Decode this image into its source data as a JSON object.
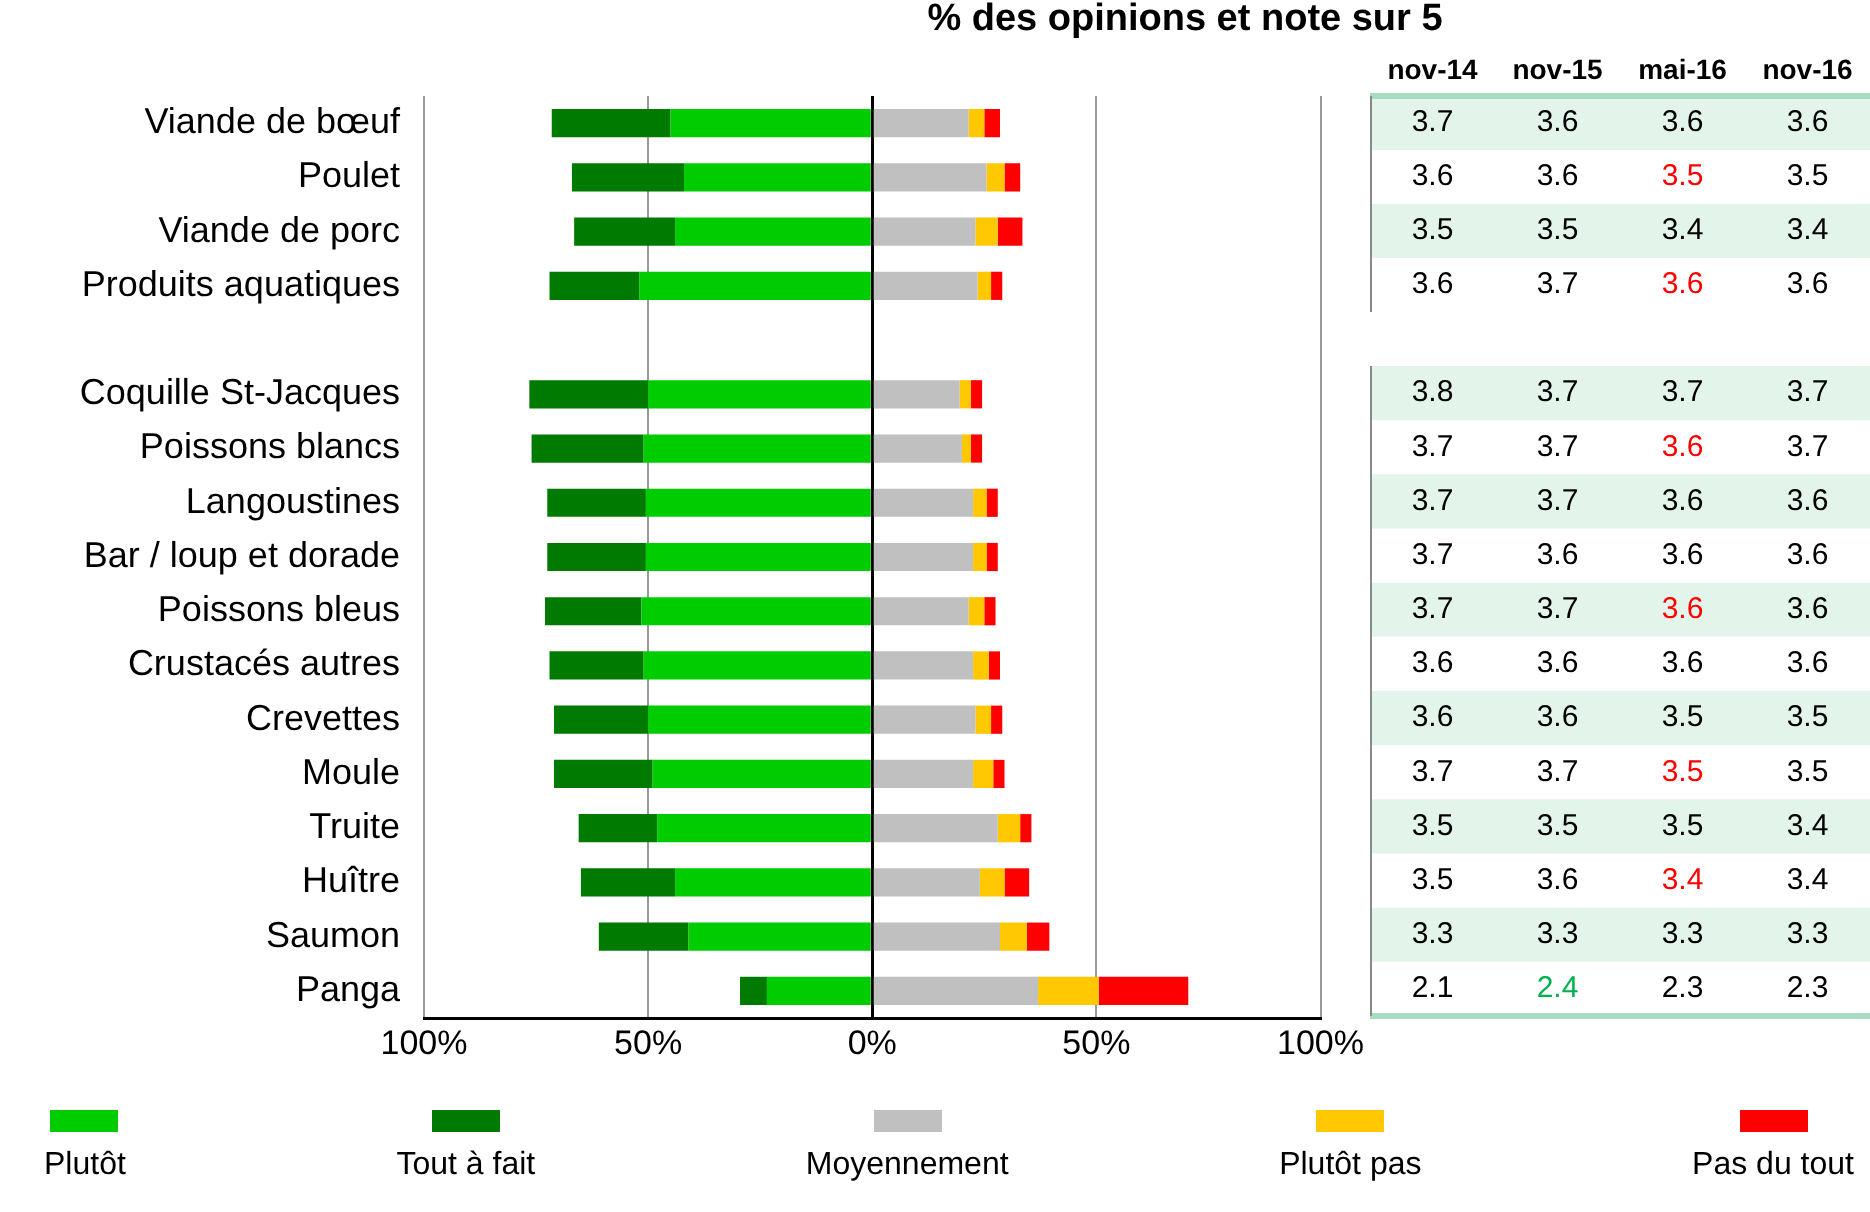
{
  "chart_data": [
    {
      "type": "bar",
      "title": "% des opinions et note sur 5",
      "orientation": "horizontal",
      "stacked": true,
      "categories": [
        "Viande de bœuf",
        "Poulet",
        "Viande de porc",
        "Produits aquatiques",
        null,
        "Coquille St-Jacques",
        "Poissons blancs",
        "Langoustines",
        "Bar / loup et dorade",
        "Poissons bleus",
        "Crustacés autres",
        "Crevettes",
        "Moule",
        "Truite",
        "Huître",
        "Saumon",
        "Panga"
      ],
      "series": [
        {
          "name": "Plutôt",
          "color": "#00cc00",
          "values": [
            -45,
            -42,
            -44,
            -52,
            null,
            -50,
            -51,
            -50.5,
            -50.5,
            -51.5,
            -51,
            -50,
            -49,
            -48,
            -44,
            -41,
            -23.5
          ]
        },
        {
          "name": "Tout à fait",
          "color": "#007a00",
          "values": [
            -26.5,
            -25,
            -22.5,
            -20,
            null,
            -26.5,
            -25,
            -22,
            -22,
            -21.5,
            -21,
            -21,
            -22,
            -17.5,
            -21,
            -20,
            -6
          ]
        },
        {
          "name": "Moyennement",
          "color": "#c0c0c0",
          "values": [
            21.5,
            25.5,
            23,
            23.5,
            null,
            19.5,
            20,
            22.5,
            22.5,
            21.5,
            22.5,
            23,
            22.5,
            28,
            24,
            28.5,
            37
          ]
        },
        {
          "name": "Plutôt pas",
          "color": "#ffc800",
          "values": [
            3.5,
            4,
            5,
            3,
            null,
            2.5,
            2,
            3,
            3,
            3.5,
            3.5,
            3.5,
            4.5,
            5,
            5.5,
            6,
            13.5
          ]
        },
        {
          "name": "Pas du tout",
          "color": "#ff0000",
          "values": [
            3.5,
            3.5,
            5.5,
            2.5,
            null,
            2.5,
            2.5,
            2.5,
            2.5,
            2.5,
            2.5,
            2.5,
            2.5,
            2.5,
            5.5,
            5,
            20
          ]
        }
      ],
      "xlim": [
        -100,
        100
      ],
      "xticks": [
        {
          "value": -100,
          "label": "100%"
        },
        {
          "value": -50,
          "label": "50%"
        },
        {
          "value": 0,
          "label": "0%"
        },
        {
          "value": 50,
          "label": "50%"
        },
        {
          "value": 100,
          "label": "100%"
        }
      ],
      "grid": "x",
      "legend": "bottom"
    },
    {
      "type": "heatmap",
      "categories": [
        "nov-14",
        "nov-15",
        "mai-16",
        "nov-16"
      ],
      "y_categories": [
        null,
        null,
        null,
        null
      ],
      "tick_labels": "x",
      "data_labels": true,
      "cells": [
        [
          3.7,
          3.6,
          3.6,
          3.6
        ],
        [
          3.6,
          3.6,
          3.5,
          3.5
        ],
        [
          3.5,
          3.5,
          3.4,
          3.4
        ],
        [
          3.6,
          3.7,
          3.6,
          3.6
        ]
      ],
      "colors": [
        [
          null,
          null,
          null,
          null
        ],
        [
          null,
          null,
          "#ff0000",
          null
        ],
        [
          null,
          null,
          null,
          null
        ],
        [
          null,
          null,
          "#ff0000",
          null
        ]
      ]
    },
    {
      "type": "heatmap",
      "categories": [
        null,
        null,
        null,
        null
      ],
      "y_categories": [
        null,
        null,
        null,
        null,
        null,
        null,
        null,
        null,
        null,
        null,
        null,
        null
      ],
      "tick_labels": false,
      "data_labels": true,
      "cells": [
        [
          3.8,
          3.7,
          3.7,
          3.7
        ],
        [
          3.7,
          3.7,
          3.6,
          3.7
        ],
        [
          3.7,
          3.7,
          3.6,
          3.6
        ],
        [
          3.7,
          3.6,
          3.6,
          3.6
        ],
        [
          3.7,
          3.7,
          3.6,
          3.6
        ],
        [
          3.6,
          3.6,
          3.6,
          3.6
        ],
        [
          3.6,
          3.6,
          3.5,
          3.5
        ],
        [
          3.7,
          3.7,
          3.5,
          3.5
        ],
        [
          3.5,
          3.5,
          3.5,
          3.4
        ],
        [
          3.5,
          3.6,
          3.4,
          3.4
        ],
        [
          3.3,
          3.3,
          3.3,
          3.3
        ],
        [
          2.1,
          2.4,
          2.3,
          2.3
        ]
      ],
      "colors": [
        [
          null,
          null,
          null,
          null
        ],
        [
          null,
          null,
          "#ff0000",
          null
        ],
        [
          null,
          null,
          null,
          null
        ],
        [
          null,
          null,
          null,
          null
        ],
        [
          null,
          null,
          "#ff0000",
          null
        ],
        [
          null,
          null,
          null,
          null
        ],
        [
          null,
          null,
          null,
          null
        ],
        [
          null,
          null,
          "#ff0000",
          null
        ],
        [
          null,
          null,
          null,
          null
        ],
        [
          null,
          null,
          "#ff0000",
          null
        ],
        [
          null,
          null,
          null,
          null
        ],
        [
          null,
          "#00b050",
          null,
          null
        ]
      ]
    }
  ]
}
